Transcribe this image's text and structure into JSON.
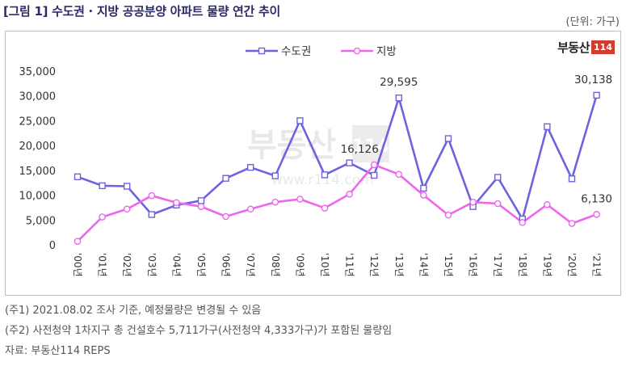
{
  "header": {
    "title": "[그림 1] 수도권 · 지방 공공분양 아파트 물량 연간 추이",
    "unit": "(단위: 가구)"
  },
  "logo": {
    "text": "부동산",
    "badge": "114"
  },
  "watermark": {
    "brand": "부동산",
    "badge": "114",
    "url": "www.r114.com"
  },
  "notes": [
    "(주1) 2021.08.02 조사 기준, 예정물량은 변경될 수 있음",
    "(주2) 사전청약 1차지구 총 건설호수 5,711가구(사전청약 4,333가구)가 포함된 물량임",
    "자료: 부동산114 REPS"
  ],
  "chart_data": {
    "type": "line",
    "categories": [
      "'00년",
      "'01년",
      "'02년",
      "'03년",
      "'04년",
      "'05년",
      "'06년",
      "'07년",
      "'08년",
      "'09년",
      "'10년",
      "'11년",
      "'12년",
      "'13년",
      "'14년",
      "'15년",
      "'16년",
      "'17년",
      "'18년",
      "'19년",
      "'20년",
      "'21년"
    ],
    "series": [
      {
        "name": "수도권",
        "color": "#6b63e0",
        "marker": "square",
        "values": [
          13700,
          11900,
          11800,
          6100,
          8000,
          8900,
          13400,
          15600,
          13900,
          25000,
          14100,
          16500,
          14000,
          29595,
          11400,
          21400,
          7700,
          13600,
          5200,
          23800,
          13300,
          30138
        ]
      },
      {
        "name": "지방",
        "color": "#ee66ee",
        "marker": "circle",
        "values": [
          700,
          5600,
          7200,
          9900,
          8500,
          7700,
          5700,
          7200,
          8600,
          9200,
          7400,
          10200,
          16126,
          14200,
          10000,
          6000,
          8600,
          8300,
          4500,
          8100,
          4300,
          6130
        ]
      }
    ],
    "yticks": [
      "0",
      "5,000",
      "10,000",
      "15,000",
      "20,000",
      "25,000",
      "30,000",
      "35,000"
    ],
    "ylim": [
      0,
      35000
    ],
    "annotations": [
      {
        "series": 0,
        "index": 13,
        "text": "29,595"
      },
      {
        "series": 0,
        "index": 21,
        "text": "30,138"
      },
      {
        "series": 1,
        "index": 12,
        "text": "16,126"
      },
      {
        "series": 1,
        "index": 21,
        "text": "6,130"
      }
    ],
    "grid": false,
    "legend": "top-center"
  }
}
